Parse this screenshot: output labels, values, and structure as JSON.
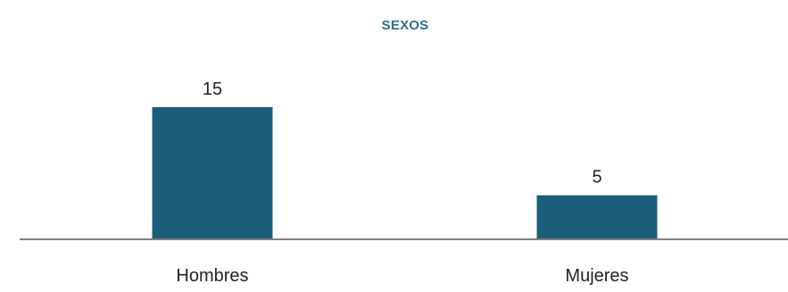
{
  "chart_data": {
    "type": "bar",
    "title": "SEXOS",
    "categories": [
      "Hombres",
      "Mujeres"
    ],
    "values": [
      15,
      5
    ],
    "data_labels": [
      "15",
      "5"
    ],
    "bar_color": "#1b5e7b",
    "title_color": "#2e6f8c",
    "axis_color": "#7f7f7f",
    "ylim": [
      0,
      15
    ],
    "grid": false,
    "legend": "none"
  }
}
